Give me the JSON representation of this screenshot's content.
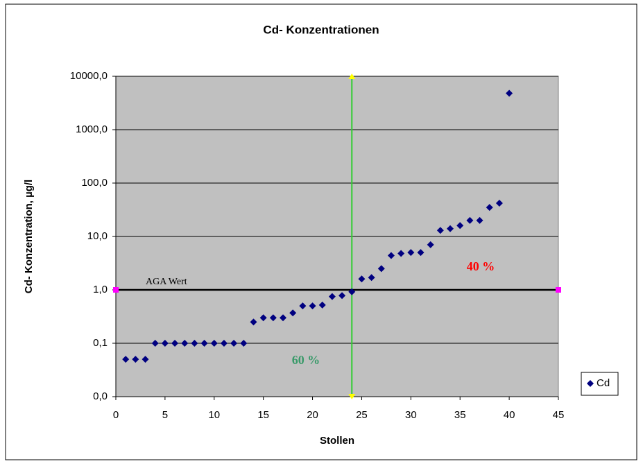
{
  "chart_data": {
    "type": "scatter",
    "title": "Cd- Konzentrationen",
    "xlabel": "Stollen",
    "ylabel": "Cd- Konzentration, µg/l",
    "x": [
      1,
      2,
      3,
      4,
      5,
      6,
      7,
      8,
      9,
      10,
      11,
      12,
      13,
      14,
      15,
      16,
      17,
      18,
      19,
      20,
      21,
      22,
      23,
      24,
      25,
      26,
      27,
      28,
      29,
      30,
      31,
      32,
      33,
      34,
      35,
      36,
      37,
      38,
      39,
      40
    ],
    "series": [
      {
        "name": "Cd",
        "color": "#000080",
        "values": [
          0.05,
          0.05,
          0.05,
          0.1,
          0.1,
          0.1,
          0.1,
          0.1,
          0.1,
          0.1,
          0.1,
          0.1,
          0.1,
          0.25,
          0.3,
          0.3,
          0.3,
          0.37,
          0.5,
          0.5,
          0.52,
          0.75,
          0.78,
          0.92,
          1.6,
          1.7,
          2.5,
          4.4,
          4.8,
          5,
          5,
          7,
          13,
          14,
          16,
          20,
          20,
          35,
          42,
          4800
        ]
      }
    ],
    "xlim": [
      0,
      45
    ],
    "xticks": [
      0,
      5,
      10,
      15,
      20,
      25,
      30,
      35,
      40,
      45
    ],
    "ylim": [
      0.01,
      10000
    ],
    "log_y": true,
    "yticks": [
      {
        "value": 0.01,
        "label": "0,0"
      },
      {
        "value": 0.1,
        "label": "0,1"
      },
      {
        "value": 1,
        "label": "1,0"
      },
      {
        "value": 10,
        "label": "10,0"
      },
      {
        "value": 100,
        "label": "100,0"
      },
      {
        "value": 1000,
        "label": "1000,0"
      },
      {
        "value": 10000,
        "label": "10000,0"
      }
    ],
    "grid": true,
    "legend": "right",
    "reference_lines": [
      {
        "axis": "y",
        "value": 1,
        "label": "AGA Wert",
        "color": "#000000"
      },
      {
        "axis": "x",
        "value": 24,
        "color": "#33cc33"
      }
    ],
    "annotations": [
      {
        "text": "60 %",
        "color": "#3a9a6a"
      },
      {
        "text": "40 %",
        "color": "#ff0000"
      }
    ]
  }
}
